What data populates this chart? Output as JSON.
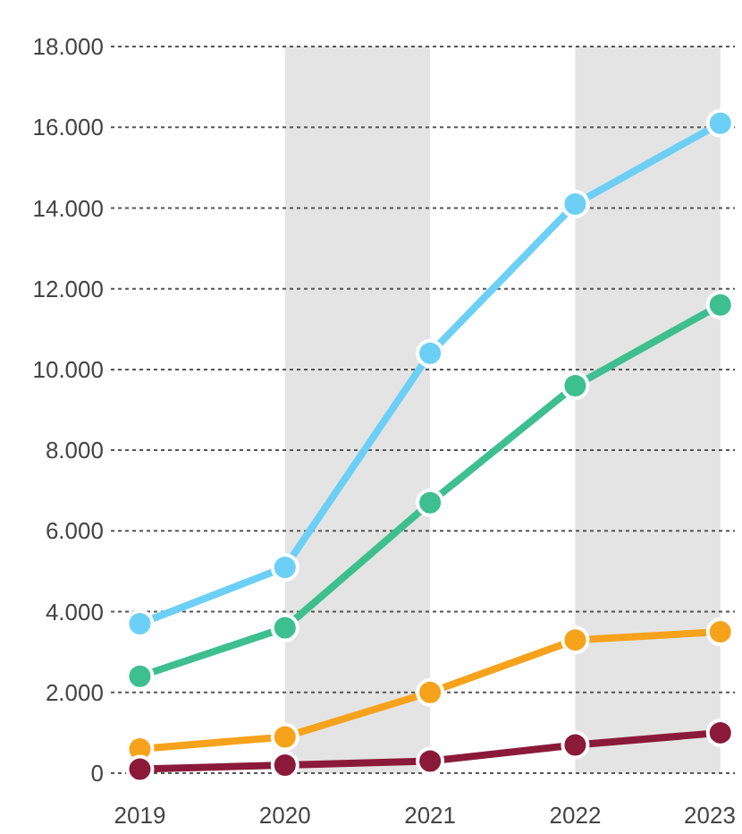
{
  "chart_data": {
    "type": "line",
    "x": [
      2019,
      2020,
      2021,
      2022,
      2023
    ],
    "xlim": [
      2018.8,
      2023.1
    ],
    "xticks": [
      2019,
      2020,
      2021,
      2022,
      2023
    ],
    "ylim": [
      0,
      18000
    ],
    "yticks": [
      0,
      {
        "value": 2000,
        "label": "2.000"
      },
      {
        "value": 4000,
        "label": "4.000"
      },
      {
        "value": 6000,
        "label": "6.000"
      },
      {
        "value": 8000,
        "label": "8.000"
      },
      {
        "value": 10000,
        "label": "10.000"
      },
      {
        "value": 12000,
        "label": "12.000"
      },
      {
        "value": 14000,
        "label": "14.000"
      },
      {
        "value": 16000,
        "label": "16.000"
      },
      {
        "value": 18000,
        "label": "18.000"
      }
    ],
    "grid": "y",
    "marker": "circle",
    "line_style": "solid",
    "bands": [
      {
        "axis": "x",
        "from": 2020,
        "to": 2021,
        "color": "#e4e4e4"
      },
      {
        "axis": "x",
        "from": 2022,
        "to": 2023,
        "color": "#e4e4e4"
      }
    ],
    "series": [
      {
        "color": "#6ccff6",
        "values": [
          3700,
          5100,
          10400,
          14100,
          16100
        ]
      },
      {
        "color": "#3dbf8f",
        "values": [
          2400,
          3600,
          6700,
          9600,
          11600
        ]
      },
      {
        "color": "#f7a21b",
        "values": [
          600,
          900,
          2000,
          3300,
          3500
        ]
      },
      {
        "color": "#8b1a3a",
        "values": [
          100,
          200,
          300,
          700,
          1000
        ]
      }
    ]
  }
}
